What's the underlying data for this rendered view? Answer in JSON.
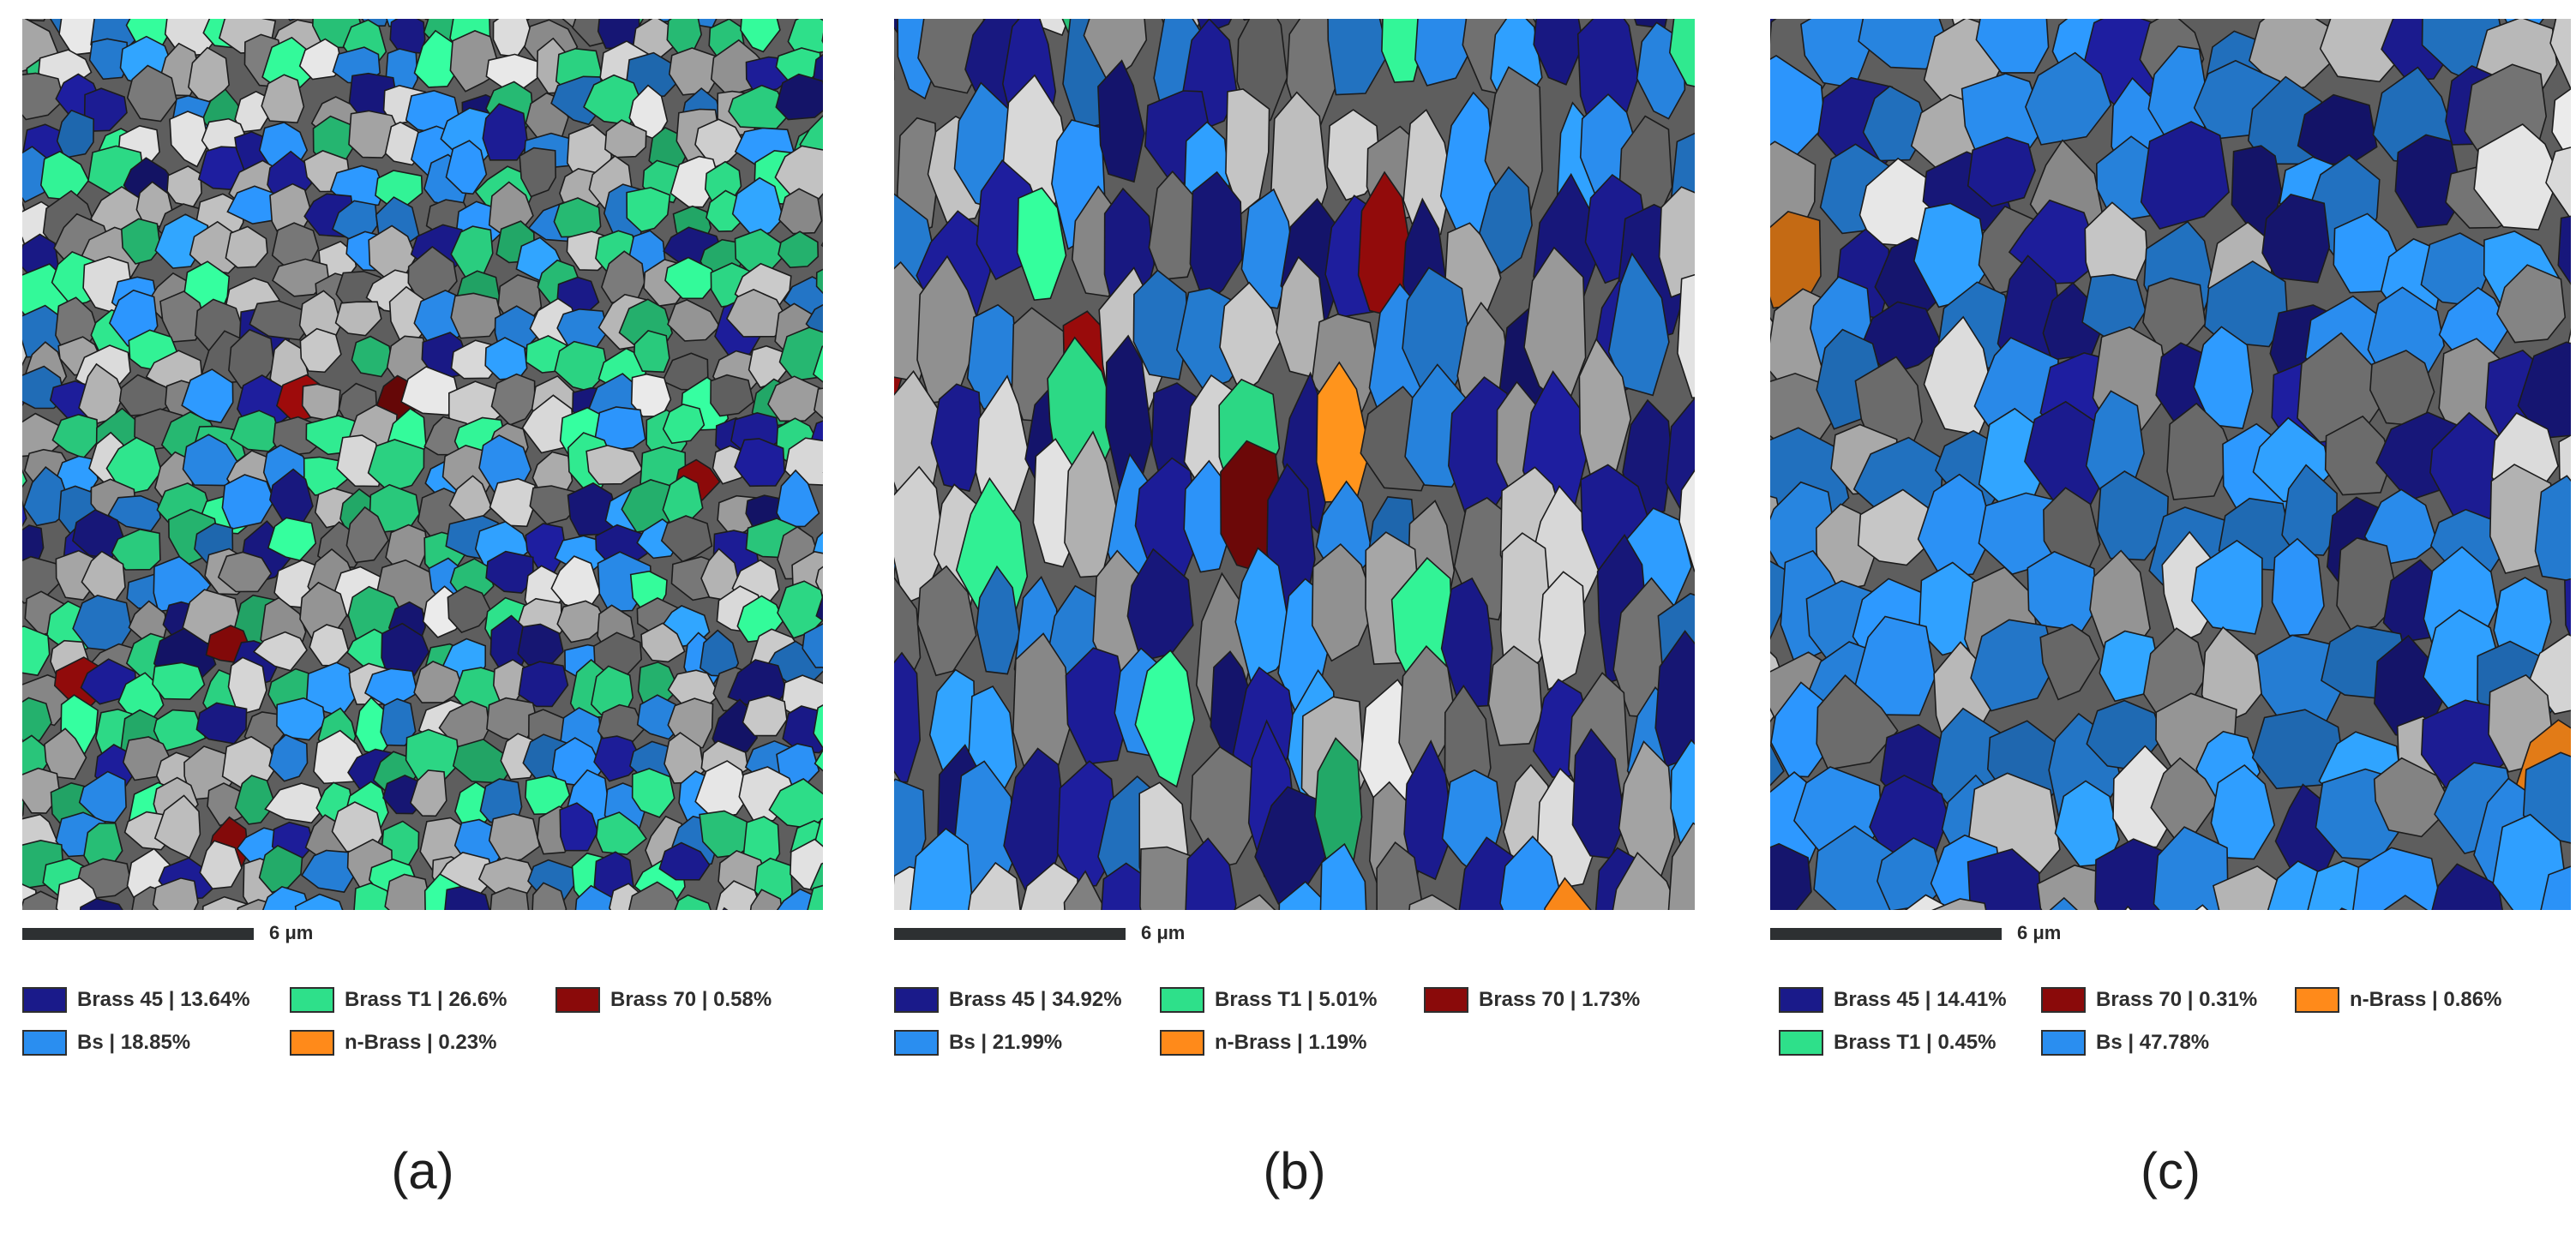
{
  "colors": {
    "Brass 45": "#1a1a8a",
    "Brass T1": "#2ee08a",
    "Brass 70": "#8a0a0a",
    "Bs": "#2a8ef0",
    "n-Brass": "#ff8a1a"
  },
  "panels": [
    {
      "caption": "(a)",
      "scale_label": "6 μm",
      "legend": [
        {
          "text": "Brass 45 | 13.64%",
          "color": "#1a1a8a"
        },
        {
          "text": "Brass T1 | 26.6%",
          "color": "#2ee08a"
        },
        {
          "text": "Brass 70 | 0.58%",
          "color": "#8a0a0a"
        },
        {
          "text": "Bs | 18.85%",
          "color": "#2a8ef0"
        },
        {
          "text": "n-Brass | 0.23%",
          "color": "#ff8a1a"
        }
      ]
    },
    {
      "caption": "(b)",
      "scale_label": "6 μm",
      "legend": [
        {
          "text": "Brass 45 | 34.92%",
          "color": "#1a1a8a"
        },
        {
          "text": "Brass T1 | 5.01%",
          "color": "#2ee08a"
        },
        {
          "text": "Brass 70 | 1.73%",
          "color": "#8a0a0a"
        },
        {
          "text": "Bs | 21.99%",
          "color": "#2a8ef0"
        },
        {
          "text": "n-Brass | 1.19%",
          "color": "#ff8a1a"
        }
      ]
    },
    {
      "caption": "(c)",
      "scale_label": "6 μm",
      "legend": [
        {
          "text": "Brass 45 | 14.41%",
          "color": "#1a1a8a"
        },
        {
          "text": "Brass 70 | 0.31%",
          "color": "#8a0a0a"
        },
        {
          "text": "n-Brass | 0.86%",
          "color": "#ff8a1a"
        },
        {
          "text": "Brass T1 | 0.45%",
          "color": "#2ee08a"
        },
        {
          "text": "Bs | 47.78%",
          "color": "#2a8ef0"
        }
      ]
    }
  ]
}
